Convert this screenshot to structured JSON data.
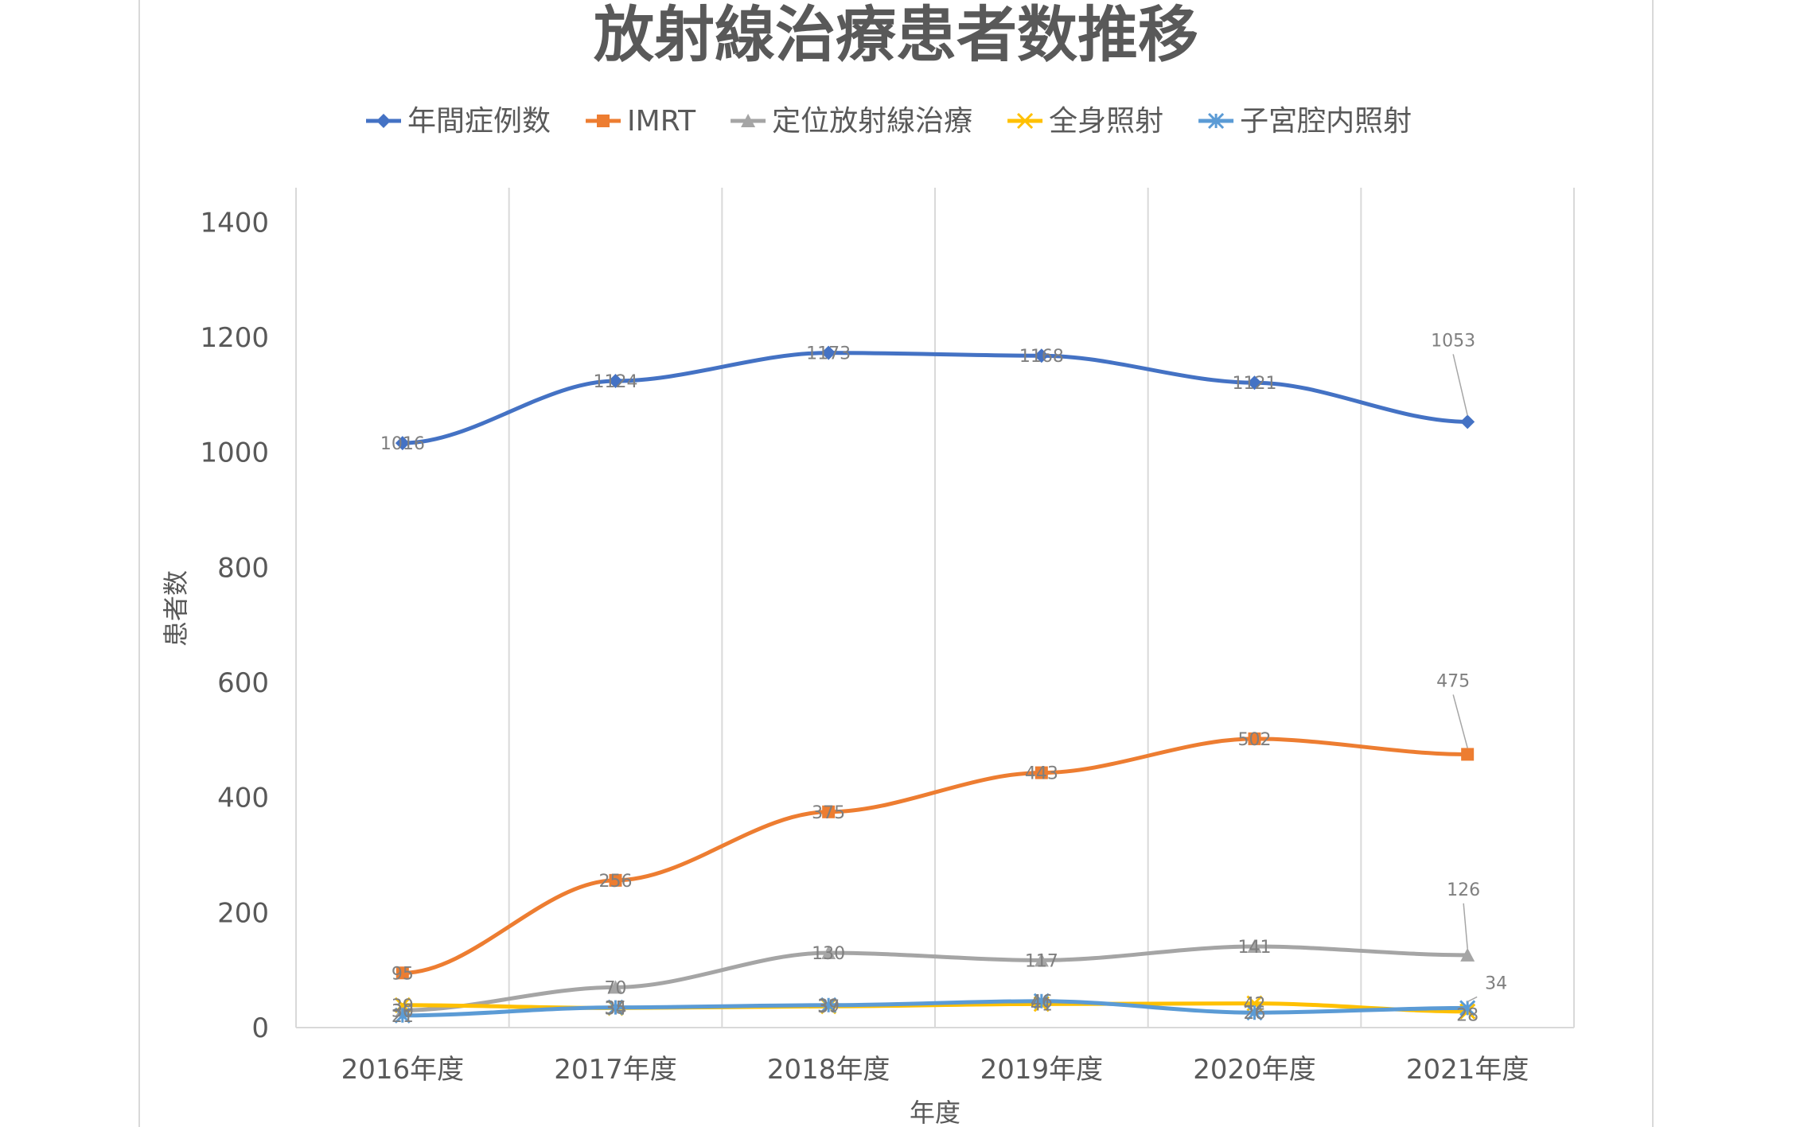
{
  "chart_data": {
    "type": "line",
    "title": "放射線治療患者数推移",
    "xlabel": "年度",
    "ylabel": "患者数",
    "categories": [
      "2016年度",
      "2017年度",
      "2018年度",
      "2019年度",
      "2020年度",
      "2021年度"
    ],
    "ylim": [
      0,
      1400
    ],
    "yticks": [
      0,
      200,
      400,
      600,
      800,
      1000,
      1200,
      1400
    ],
    "grid": "vertical",
    "legend_position": "top",
    "series": [
      {
        "name": "年間症例数",
        "color": "#4472c4",
        "marker": "diamond",
        "values": [
          1016,
          1124,
          1173,
          1168,
          1121,
          1053
        ]
      },
      {
        "name": "IMRT",
        "color": "#ed7d31",
        "marker": "square",
        "values": [
          95,
          256,
          375,
          443,
          502,
          475
        ]
      },
      {
        "name": "定位放射線治療",
        "color": "#a5a5a5",
        "marker": "triangle",
        "values": [
          30,
          70,
          130,
          117,
          141,
          126
        ]
      },
      {
        "name": "全身照射",
        "color": "#ffc000",
        "marker": "x",
        "values": [
          39,
          34,
          37,
          41,
          42,
          28
        ]
      },
      {
        "name": "子宮腔内照射",
        "color": "#5b9bd5",
        "marker": "star",
        "values": [
          21,
          35,
          39,
          46,
          26,
          34
        ]
      }
    ]
  }
}
